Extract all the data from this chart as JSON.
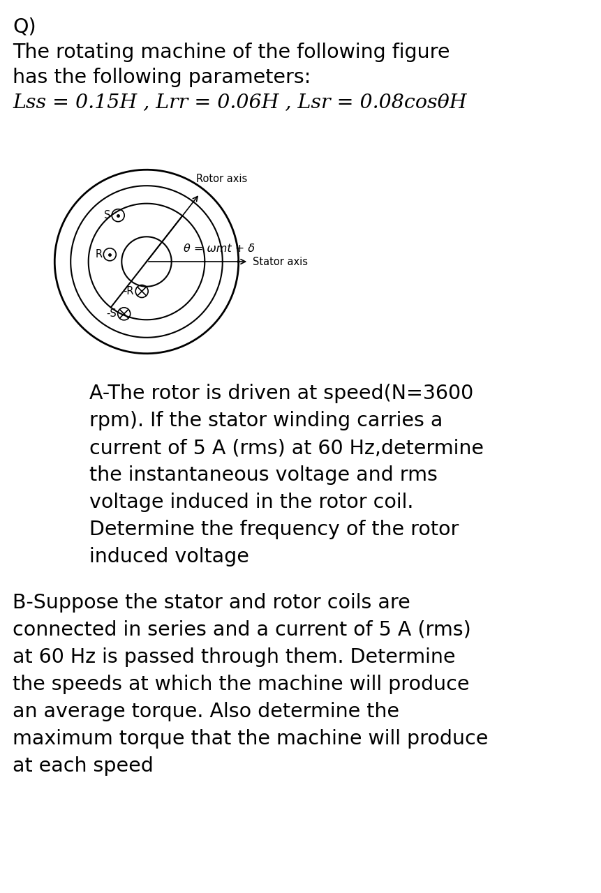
{
  "title_line1": "Q)",
  "title_line2": "The rotating machine of the following figure",
  "title_line3": "has the following parameters:",
  "title_line4_normal": "Lss",
  "title_line4": "Lss = 0.15H , Lrr = 0.06H , Lsr = 0.08cosθH",
  "rotor_axis_label": "Rotor axis",
  "stator_axis_label": "Stator axis",
  "theta_label": "θ = ωmt + δ",
  "part_A_text": "A-The rotor is driven at speed(N=3600\nrpm). If the stator winding carries a\ncurrent of 5 A (rms) at 60 Hz,determine\nthe instantaneous voltage and rms\nvoltage induced in the rotor coil.\nDetermine the frequency of the rotor\ninduced voltage",
  "part_B_text": "B-Suppose the stator and rotor coils are\nconnected in series and a current of 5 A (rms)\nat 60 Hz is passed through them. Determine\nthe speeds at which the machine will produce\nan average torque. Also determine the\nmaximum torque that the machine will produce\nat each speed",
  "bg_color": "#ffffff",
  "text_color": "#000000",
  "fig_width": 8.61,
  "fig_height": 12.8,
  "dpi": 100
}
